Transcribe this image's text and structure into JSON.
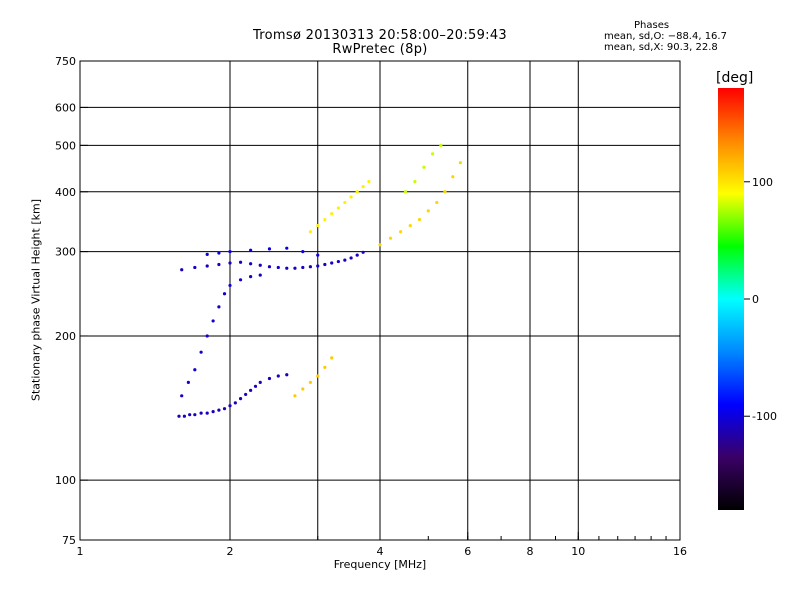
{
  "title": {
    "line1": "Tromsø 20130313 20:58:00–20:59:43",
    "line2": "RwPretec (8p)"
  },
  "stats": {
    "header": "Phases",
    "line_o": "mean, sd,O: −88.4, 16.7",
    "line_x": "mean, sd,X:  90.3, 22.8"
  },
  "chart_data": {
    "type": "scatter",
    "xlabel": "Frequency [MHz]",
    "ylabel": "Stationary phase Virtual Height [km]",
    "x_scale": "log",
    "y_scale": "log",
    "xlim": [
      1,
      16
    ],
    "ylim": [
      75,
      750
    ],
    "x_ticks": [
      {
        "value": 1,
        "label": "1"
      },
      {
        "value": 2,
        "label": "2"
      },
      {
        "value": 4,
        "label": "4"
      },
      {
        "value": 6,
        "label": "6"
      },
      {
        "value": 8,
        "label": "8"
      },
      {
        "value": 10,
        "label": "10"
      },
      {
        "value": 16,
        "label": "16"
      }
    ],
    "x_grid": [
      2,
      3,
      4,
      6,
      8,
      10
    ],
    "y_ticks": [
      {
        "value": 75,
        "label": "75"
      },
      {
        "value": 100,
        "label": "100"
      },
      {
        "value": 200,
        "label": "200"
      },
      {
        "value": 300,
        "label": "300"
      },
      {
        "value": 400,
        "label": "400"
      },
      {
        "value": 500,
        "label": "500"
      },
      {
        "value": 600,
        "label": "600"
      },
      {
        "value": 750,
        "label": "750"
      }
    ],
    "y_grid": [
      100,
      200,
      300,
      400,
      500,
      600
    ],
    "colorbar": {
      "label": "[deg]",
      "range": [
        -180,
        180
      ],
      "ticks": [
        {
          "value": 100,
          "label": "100"
        },
        {
          "value": 0,
          "label": "0"
        },
        {
          "value": -100,
          "label": "-100"
        }
      ],
      "colormap": [
        "#000000",
        "#3a0066",
        "#0000ff",
        "#0088ff",
        "#00ffff",
        "#00ff00",
        "#ffff00",
        "#ff8800",
        "#ff0000"
      ]
    },
    "grid": true,
    "clusters": [
      {
        "name": "o_trace_low",
        "points": [
          [
            1.58,
            136
          ],
          [
            1.62,
            136
          ],
          [
            1.66,
            137
          ],
          [
            1.7,
            137
          ],
          [
            1.75,
            138
          ],
          [
            1.8,
            138
          ],
          [
            1.85,
            139
          ],
          [
            1.9,
            140
          ],
          [
            1.95,
            141
          ],
          [
            2.0,
            143
          ],
          [
            2.05,
            145
          ],
          [
            2.1,
            148
          ],
          [
            2.15,
            151
          ],
          [
            2.2,
            154
          ],
          [
            2.25,
            157
          ],
          [
            2.3,
            160
          ],
          [
            2.4,
            163
          ],
          [
            2.5,
            165
          ],
          [
            2.6,
            166
          ]
        ],
        "phase": -110
      },
      {
        "name": "o_trace_mid",
        "points": [
          [
            1.6,
            150
          ],
          [
            1.65,
            160
          ],
          [
            1.7,
            170
          ],
          [
            1.75,
            185
          ],
          [
            1.8,
            200
          ],
          [
            1.85,
            215
          ],
          [
            1.9,
            230
          ],
          [
            1.95,
            245
          ],
          [
            2.0,
            255
          ],
          [
            2.1,
            262
          ],
          [
            2.2,
            266
          ],
          [
            2.3,
            268
          ]
        ],
        "phase": -105
      },
      {
        "name": "f_layer",
        "points": [
          [
            1.6,
            275
          ],
          [
            1.7,
            278
          ],
          [
            1.8,
            280
          ],
          [
            1.9,
            282
          ],
          [
            2.0,
            284
          ],
          [
            2.1,
            285
          ],
          [
            2.2,
            283
          ],
          [
            2.3,
            281
          ],
          [
            2.4,
            279
          ],
          [
            2.5,
            278
          ],
          [
            2.6,
            277
          ],
          [
            2.7,
            277
          ],
          [
            2.8,
            278
          ],
          [
            2.9,
            279
          ],
          [
            3.0,
            280
          ],
          [
            3.1,
            282
          ],
          [
            3.2,
            284
          ],
          [
            3.3,
            286
          ],
          [
            3.4,
            288
          ],
          [
            3.5,
            291
          ],
          [
            3.6,
            295
          ],
          [
            3.7,
            299
          ]
        ],
        "phase": -108
      },
      {
        "name": "f_upper",
        "points": [
          [
            1.8,
            296
          ],
          [
            1.9,
            298
          ],
          [
            2.0,
            300
          ],
          [
            2.2,
            302
          ],
          [
            2.4,
            304
          ],
          [
            2.6,
            305
          ],
          [
            2.8,
            300
          ],
          [
            3.0,
            295
          ]
        ],
        "phase": -100
      },
      {
        "name": "x_trace",
        "points": [
          [
            2.9,
            330
          ],
          [
            3.0,
            340
          ],
          [
            3.1,
            350
          ],
          [
            3.2,
            360
          ],
          [
            3.3,
            370
          ],
          [
            3.4,
            380
          ],
          [
            3.5,
            390
          ],
          [
            3.6,
            400
          ],
          [
            3.7,
            410
          ],
          [
            3.8,
            420
          ]
        ],
        "phase": 95
      },
      {
        "name": "x_low",
        "points": [
          [
            2.7,
            150
          ],
          [
            2.8,
            155
          ],
          [
            2.9,
            160
          ],
          [
            3.0,
            165
          ],
          [
            3.1,
            172
          ],
          [
            3.2,
            180
          ]
        ],
        "phase": 110
      },
      {
        "name": "high_f",
        "points": [
          [
            4.0,
            310
          ],
          [
            4.2,
            320
          ],
          [
            4.4,
            330
          ],
          [
            4.6,
            340
          ],
          [
            4.8,
            350
          ],
          [
            5.0,
            365
          ],
          [
            5.2,
            380
          ],
          [
            5.4,
            400
          ],
          [
            5.6,
            430
          ],
          [
            5.8,
            460
          ]
        ],
        "phase": 105
      },
      {
        "name": "high_x",
        "points": [
          [
            4.5,
            400
          ],
          [
            4.7,
            420
          ],
          [
            4.9,
            450
          ],
          [
            5.1,
            480
          ],
          [
            5.3,
            500
          ]
        ],
        "phase": 80
      }
    ]
  }
}
